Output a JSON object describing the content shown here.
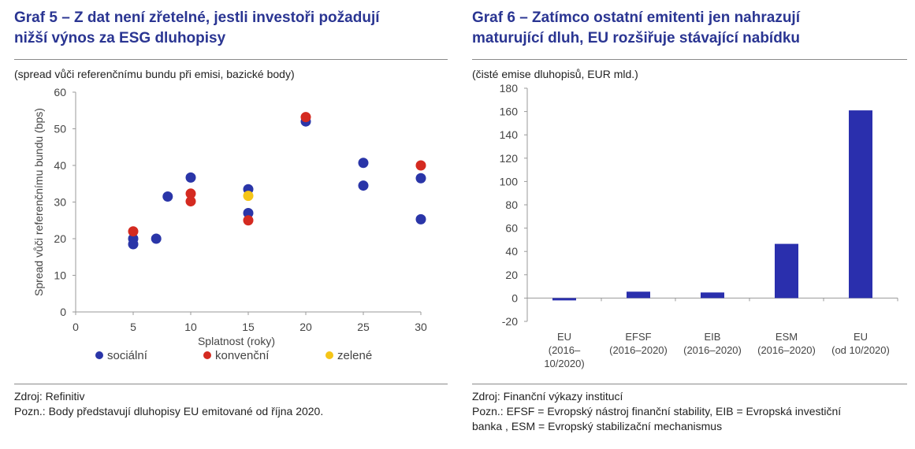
{
  "left": {
    "title": [
      "Graf 5 – Z dat není zřetelné, jestli investoři požadují",
      "nižší výnos za ESG dluhopisy"
    ],
    "subtitle": "(spread vůči referenčnímu bundu při emisi, bazické body)",
    "source": "Zdroj: Refinitiv",
    "note": "Pozn.: Body představují dluhopisy EU emitované od října 2020.",
    "chart_data": {
      "type": "scatter",
      "xlabel": "Splatnost (roky)",
      "ylabel": "Spread vůči referenčnímu bundu (bps)",
      "xlim": [
        0,
        30
      ],
      "ylim": [
        0,
        60
      ],
      "xticks": [
        "0",
        "5",
        "10",
        "15",
        "20",
        "25",
        "30"
      ],
      "yticks": [
        "0",
        "10",
        "20",
        "30",
        "40",
        "50",
        "60"
      ],
      "grid": false,
      "legend_position": "bottom",
      "series": [
        {
          "name": "sociální",
          "color": "#2a35a8",
          "points": [
            [
              5,
              20
            ],
            [
              5,
              18.5
            ],
            [
              7,
              20
            ],
            [
              8,
              31.5
            ],
            [
              10,
              36.7
            ],
            [
              15,
              33.5
            ],
            [
              15,
              27
            ],
            [
              20,
              52
            ],
            [
              25,
              40.7
            ],
            [
              25,
              34.5
            ],
            [
              30,
              36.5
            ],
            [
              30,
              25.3
            ]
          ]
        },
        {
          "name": "konvenční",
          "color": "#d42a20",
          "points": [
            [
              5,
              22
            ],
            [
              10,
              32.3
            ],
            [
              10,
              30.2
            ],
            [
              15,
              25
            ],
            [
              20,
              53.2
            ],
            [
              30,
              40
            ]
          ]
        },
        {
          "name": "zelené",
          "color": "#f5c518",
          "points": [
            [
              15,
              31.7
            ]
          ]
        }
      ]
    }
  },
  "right": {
    "title": [
      "Graf 6 – Zatímco ostatní emitenti jen nahrazují",
      "maturující dluh, EU rozšiřuje stávající nabídku"
    ],
    "subtitle": "(čisté emise dluhopisů, EUR mld.)",
    "source": "Zdroj: Finanční výkazy institucí",
    "note": [
      "Pozn.: EFSF = Evropský nástroj finanční stability, EIB = Evropská investiční",
      "banka , ESM = Evropský stabilizační mechanismus"
    ],
    "chart_data": {
      "type": "bar",
      "categories": [
        [
          "EU",
          "(2016–",
          "10/2020)"
        ],
        [
          "EFSF",
          "(2016–2020)"
        ],
        [
          "EIB",
          "(2016–2020)"
        ],
        [
          "ESM",
          "(2016–2020)"
        ],
        [
          "EU",
          "(od 10/2020)"
        ]
      ],
      "values": [
        -2,
        5.5,
        4.8,
        46.5,
        161
      ],
      "ylim": [
        -20,
        180
      ],
      "yticks": [
        "-20",
        "0",
        "20",
        "40",
        "60",
        "80",
        "100",
        "120",
        "140",
        "160",
        "180"
      ],
      "color": "#2a2fad",
      "grid": false
    }
  }
}
